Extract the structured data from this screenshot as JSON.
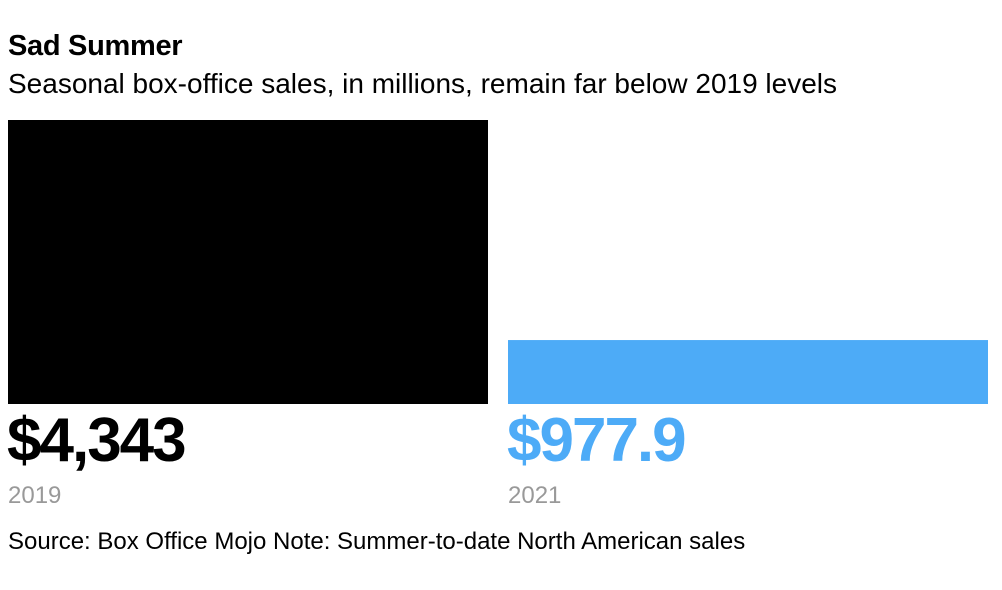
{
  "chart_data": {
    "type": "bar",
    "title": "Sad Summer",
    "subtitle": "Seasonal box-office sales, in millions, remain far below 2019 levels",
    "categories": [
      "2019",
      "2021"
    ],
    "values": [
      4343,
      977.9
    ],
    "value_labels": [
      "$4,343",
      "$977.9"
    ],
    "colors": [
      "#000000",
      "#4dabf7"
    ],
    "ylim": [
      0,
      4343
    ],
    "grid": false,
    "legend": "none"
  },
  "footer": {
    "source": "Source: Box Office Mojo Note: Summer-to-date North American sales"
  },
  "colors": {
    "category_label": "#999999"
  }
}
